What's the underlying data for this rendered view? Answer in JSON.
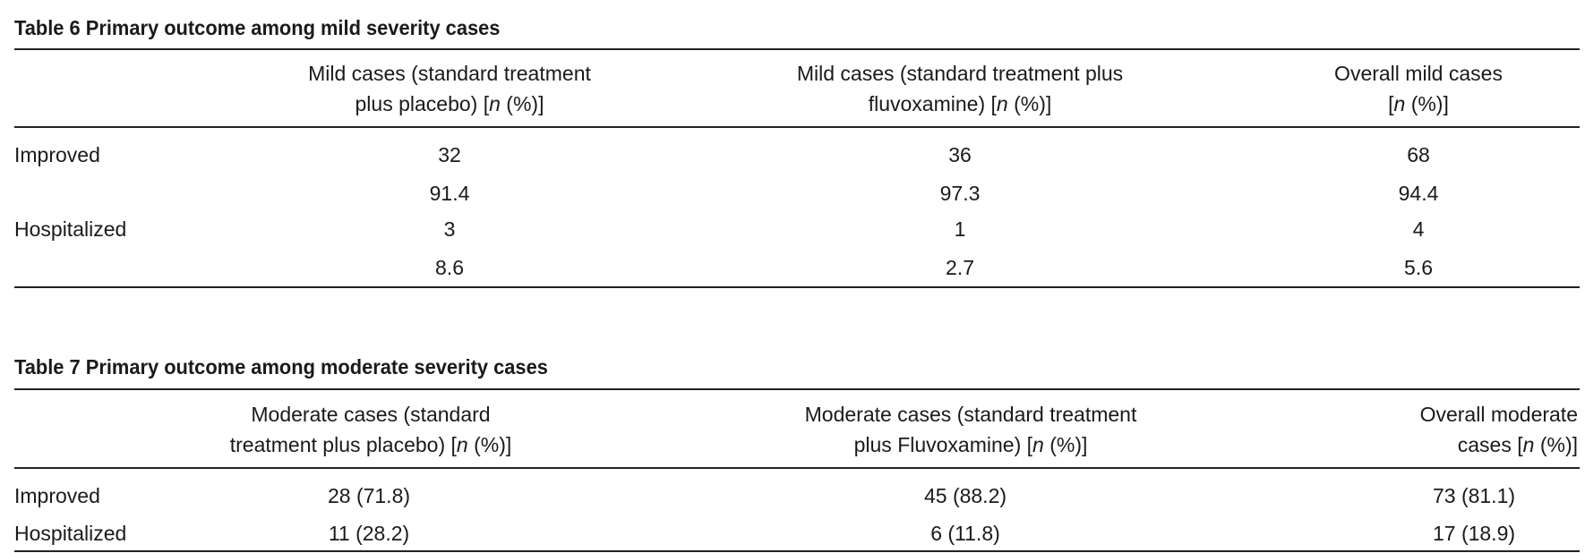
{
  "table6": {
    "title": "Table 6  Primary outcome among mild severity cases",
    "headers": [
      {
        "line1": "Mild cases (standard treatment",
        "line2_pre": "plus placebo) [",
        "line2_italic": "n",
        "line2_post": " (%)]"
      },
      {
        "line1": "Mild cases (standard treatment plus",
        "line2_pre": "fluvoxamine) [",
        "line2_italic": "n",
        "line2_post": " (%)]"
      },
      {
        "line1": "Overall mild cases",
        "line2_pre": "[",
        "line2_italic": "n",
        "line2_post": " (%)]"
      }
    ],
    "rows": [
      {
        "label": "Improved",
        "n": [
          "32",
          "36",
          "68"
        ],
        "pct": [
          "91.4",
          "97.3",
          "94.4"
        ]
      },
      {
        "label": "Hospitalized",
        "n": [
          "3",
          "1",
          "4"
        ],
        "pct": [
          "8.6",
          "2.7",
          "5.6"
        ]
      }
    ]
  },
  "table7": {
    "title": "Table 7  Primary outcome among moderate severity cases",
    "headers": [
      {
        "line1": "Moderate cases (standard",
        "line2_pre": "treatment plus placebo) [",
        "line2_italic": "n",
        "line2_post": " (%)]"
      },
      {
        "line1": "Moderate cases (standard treatment",
        "line2_pre": "plus Fluvoxamine) [",
        "line2_italic": "n",
        "line2_post": " (%)]"
      },
      {
        "line1": "Overall moderate",
        "line2_pre": "cases [",
        "line2_italic": "n",
        "line2_post": " (%)]"
      }
    ],
    "rows": [
      {
        "label": "Improved",
        "values": [
          "28 (71.8)",
          "45 (88.2)",
          "73 (81.1)"
        ]
      },
      {
        "label": "Hospitalized",
        "values": [
          "11 (28.2)",
          "6 (11.8)",
          "17 (18.9)"
        ]
      }
    ]
  }
}
